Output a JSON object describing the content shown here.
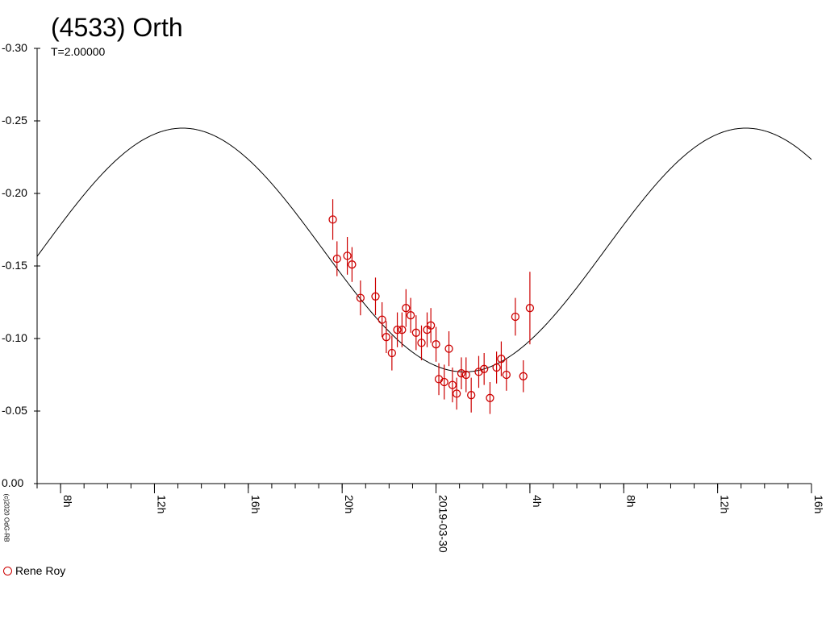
{
  "chart_data": {
    "type": "scatter",
    "title": "(4533) Orth",
    "subtitle": "T=2.00000",
    "credit": "(c)2020 OdG-RB",
    "y_inverted": true,
    "ylim": [
      0.0,
      -0.3
    ],
    "y_ticks": [
      "0.00",
      "-0.05",
      "-0.10",
      "-0.15",
      "-0.20",
      "-0.25",
      "-0.30"
    ],
    "x_range_hours": [
      7.0,
      40.0
    ],
    "x_ticks": [
      {
        "h": 8,
        "label": "8h"
      },
      {
        "h": 12,
        "label": "12h"
      },
      {
        "h": 16,
        "label": "16h"
      },
      {
        "h": 20,
        "label": "20h"
      },
      {
        "h": 24,
        "label": "2019-03-30"
      },
      {
        "h": 28,
        "label": "4h"
      },
      {
        "h": 32,
        "label": "8h"
      },
      {
        "h": 36,
        "label": "12h"
      },
      {
        "h": 40,
        "label": "16h"
      }
    ],
    "legend": [
      {
        "name": "Rene Roy",
        "marker": "open-circle",
        "color": "#cc0000"
      }
    ],
    "fit_curve": {
      "mean": -0.161,
      "amplitude": 0.084,
      "min_hour": 25.2,
      "period_hours": 24.0
    },
    "series": [
      {
        "name": "Rene Roy",
        "color": "#cc0000",
        "points": [
          {
            "x": 19.6,
            "y": -0.182,
            "err": 0.014
          },
          {
            "x": 19.78,
            "y": -0.155,
            "err": 0.012
          },
          {
            "x": 20.22,
            "y": -0.157,
            "err": 0.013
          },
          {
            "x": 20.42,
            "y": -0.151,
            "err": 0.012
          },
          {
            "x": 20.78,
            "y": -0.128,
            "err": 0.012
          },
          {
            "x": 21.42,
            "y": -0.129,
            "err": 0.013
          },
          {
            "x": 21.7,
            "y": -0.113,
            "err": 0.012
          },
          {
            "x": 21.88,
            "y": -0.101,
            "err": 0.011
          },
          {
            "x": 22.12,
            "y": -0.09,
            "err": 0.012
          },
          {
            "x": 22.35,
            "y": -0.106,
            "err": 0.012
          },
          {
            "x": 22.55,
            "y": -0.106,
            "err": 0.012
          },
          {
            "x": 22.72,
            "y": -0.121,
            "err": 0.013
          },
          {
            "x": 22.92,
            "y": -0.116,
            "err": 0.012
          },
          {
            "x": 23.15,
            "y": -0.104,
            "err": 0.012
          },
          {
            "x": 23.38,
            "y": -0.097,
            "err": 0.012
          },
          {
            "x": 23.62,
            "y": -0.106,
            "err": 0.012
          },
          {
            "x": 23.78,
            "y": -0.109,
            "err": 0.012
          },
          {
            "x": 24.0,
            "y": -0.096,
            "err": 0.012
          },
          {
            "x": 24.12,
            "y": -0.072,
            "err": 0.011
          },
          {
            "x": 24.35,
            "y": -0.07,
            "err": 0.012
          },
          {
            "x": 24.55,
            "y": -0.093,
            "err": 0.012
          },
          {
            "x": 24.7,
            "y": -0.068,
            "err": 0.012
          },
          {
            "x": 24.88,
            "y": -0.062,
            "err": 0.011
          },
          {
            "x": 25.08,
            "y": -0.076,
            "err": 0.011
          },
          {
            "x": 25.28,
            "y": -0.075,
            "err": 0.012
          },
          {
            "x": 25.5,
            "y": -0.061,
            "err": 0.012
          },
          {
            "x": 25.82,
            "y": -0.077,
            "err": 0.011
          },
          {
            "x": 26.05,
            "y": -0.079,
            "err": 0.011
          },
          {
            "x": 26.3,
            "y": -0.059,
            "err": 0.011
          },
          {
            "x": 26.58,
            "y": -0.08,
            "err": 0.011
          },
          {
            "x": 26.78,
            "y": -0.086,
            "err": 0.012
          },
          {
            "x": 27.0,
            "y": -0.075,
            "err": 0.011
          },
          {
            "x": 27.38,
            "y": -0.115,
            "err": 0.013
          },
          {
            "x": 27.72,
            "y": -0.074,
            "err": 0.011
          },
          {
            "x": 28.0,
            "y": -0.121,
            "err": 0.025
          }
        ]
      }
    ]
  }
}
